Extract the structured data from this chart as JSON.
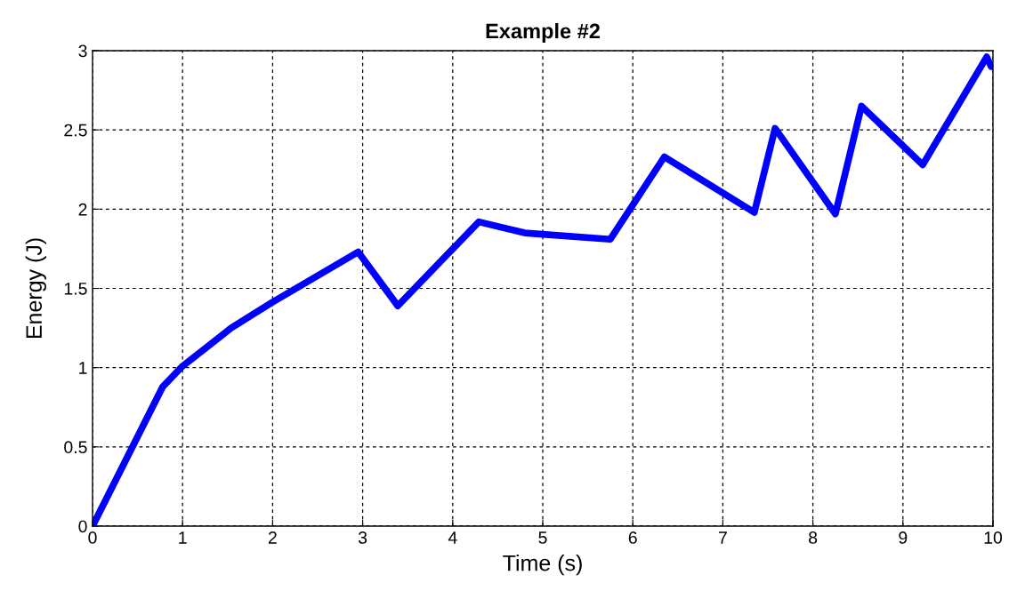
{
  "chart_data": {
    "type": "line",
    "title": "Example #2",
    "xlabel": "Time (s)",
    "ylabel": "Energy (J)",
    "x": [
      0,
      0.78,
      1.0,
      1.54,
      1.99,
      2.95,
      3.39,
      4.29,
      4.8,
      5.75,
      6.35,
      7.35,
      7.58,
      8.25,
      8.54,
      9.22,
      9.93,
      9.98
    ],
    "series": [
      {
        "color": "#0000ff",
        "values": [
          0,
          0.88,
          1.01,
          1.25,
          1.41,
          1.73,
          1.39,
          1.92,
          1.85,
          1.81,
          2.33,
          1.98,
          2.51,
          1.97,
          2.65,
          2.28,
          2.96,
          2.9
        ]
      }
    ],
    "xlim": [
      0,
      10
    ],
    "ylim": [
      0,
      3
    ],
    "xticks": [
      0,
      1,
      2,
      3,
      4,
      5,
      6,
      7,
      8,
      9,
      10
    ],
    "yticks": [
      0,
      0.5,
      1,
      1.5,
      2,
      2.5,
      3
    ],
    "grid": true,
    "marker": "none",
    "line_style": "solid",
    "legend": false
  }
}
